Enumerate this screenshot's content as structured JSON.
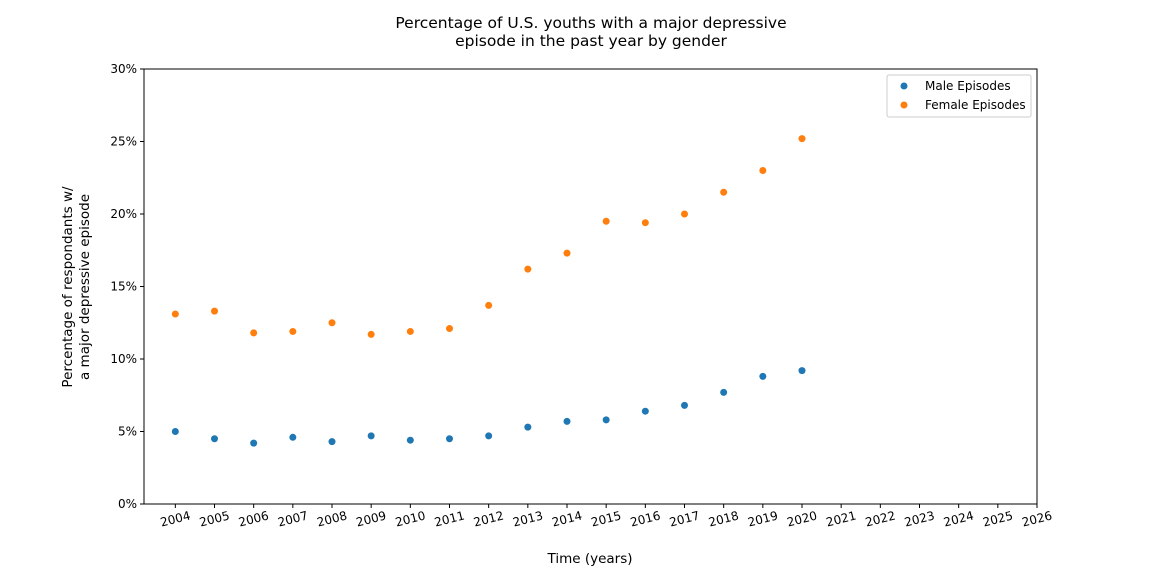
{
  "chart_data": {
    "type": "scatter",
    "title": [
      "Percentage of U.S. youths with a major depressive",
      "episode in the past year by gender"
    ],
    "xlabel": "Time (years)",
    "ylabel": [
      "Percentage of respondants w/",
      "a major depressive episode"
    ],
    "x": [
      2004,
      2005,
      2006,
      2007,
      2008,
      2009,
      2010,
      2011,
      2012,
      2013,
      2014,
      2015,
      2016,
      2017,
      2018,
      2019,
      2020
    ],
    "series": [
      {
        "name": "Male Episodes",
        "color": "#1f77b4",
        "values": [
          5.0,
          4.5,
          4.2,
          4.6,
          4.3,
          4.7,
          4.4,
          4.5,
          4.7,
          5.3,
          5.7,
          5.8,
          6.4,
          6.8,
          7.7,
          8.8,
          9.2
        ]
      },
      {
        "name": "Female Episodes",
        "color": "#ff7f0e",
        "values": [
          13.1,
          13.3,
          11.8,
          11.9,
          12.5,
          11.7,
          11.9,
          12.1,
          13.7,
          16.2,
          17.3,
          19.5,
          19.4,
          20.0,
          21.5,
          23.0,
          25.2
        ]
      }
    ],
    "xlim": [
      2003.2,
      2026
    ],
    "ylim": [
      0,
      30
    ],
    "xticks": [
      "2004",
      "2005",
      "2006",
      "2007",
      "2008",
      "2009",
      "2010",
      "2011",
      "2012",
      "2013",
      "2014",
      "2015",
      "2016",
      "2017",
      "2018",
      "2019",
      "2020",
      "2021",
      "2022",
      "2023",
      "2024",
      "2025",
      "2026"
    ],
    "yticks": [
      "0%",
      "5%",
      "10%",
      "15%",
      "20%",
      "25%",
      "30%"
    ],
    "grid": false,
    "legend_position": "top-right"
  }
}
